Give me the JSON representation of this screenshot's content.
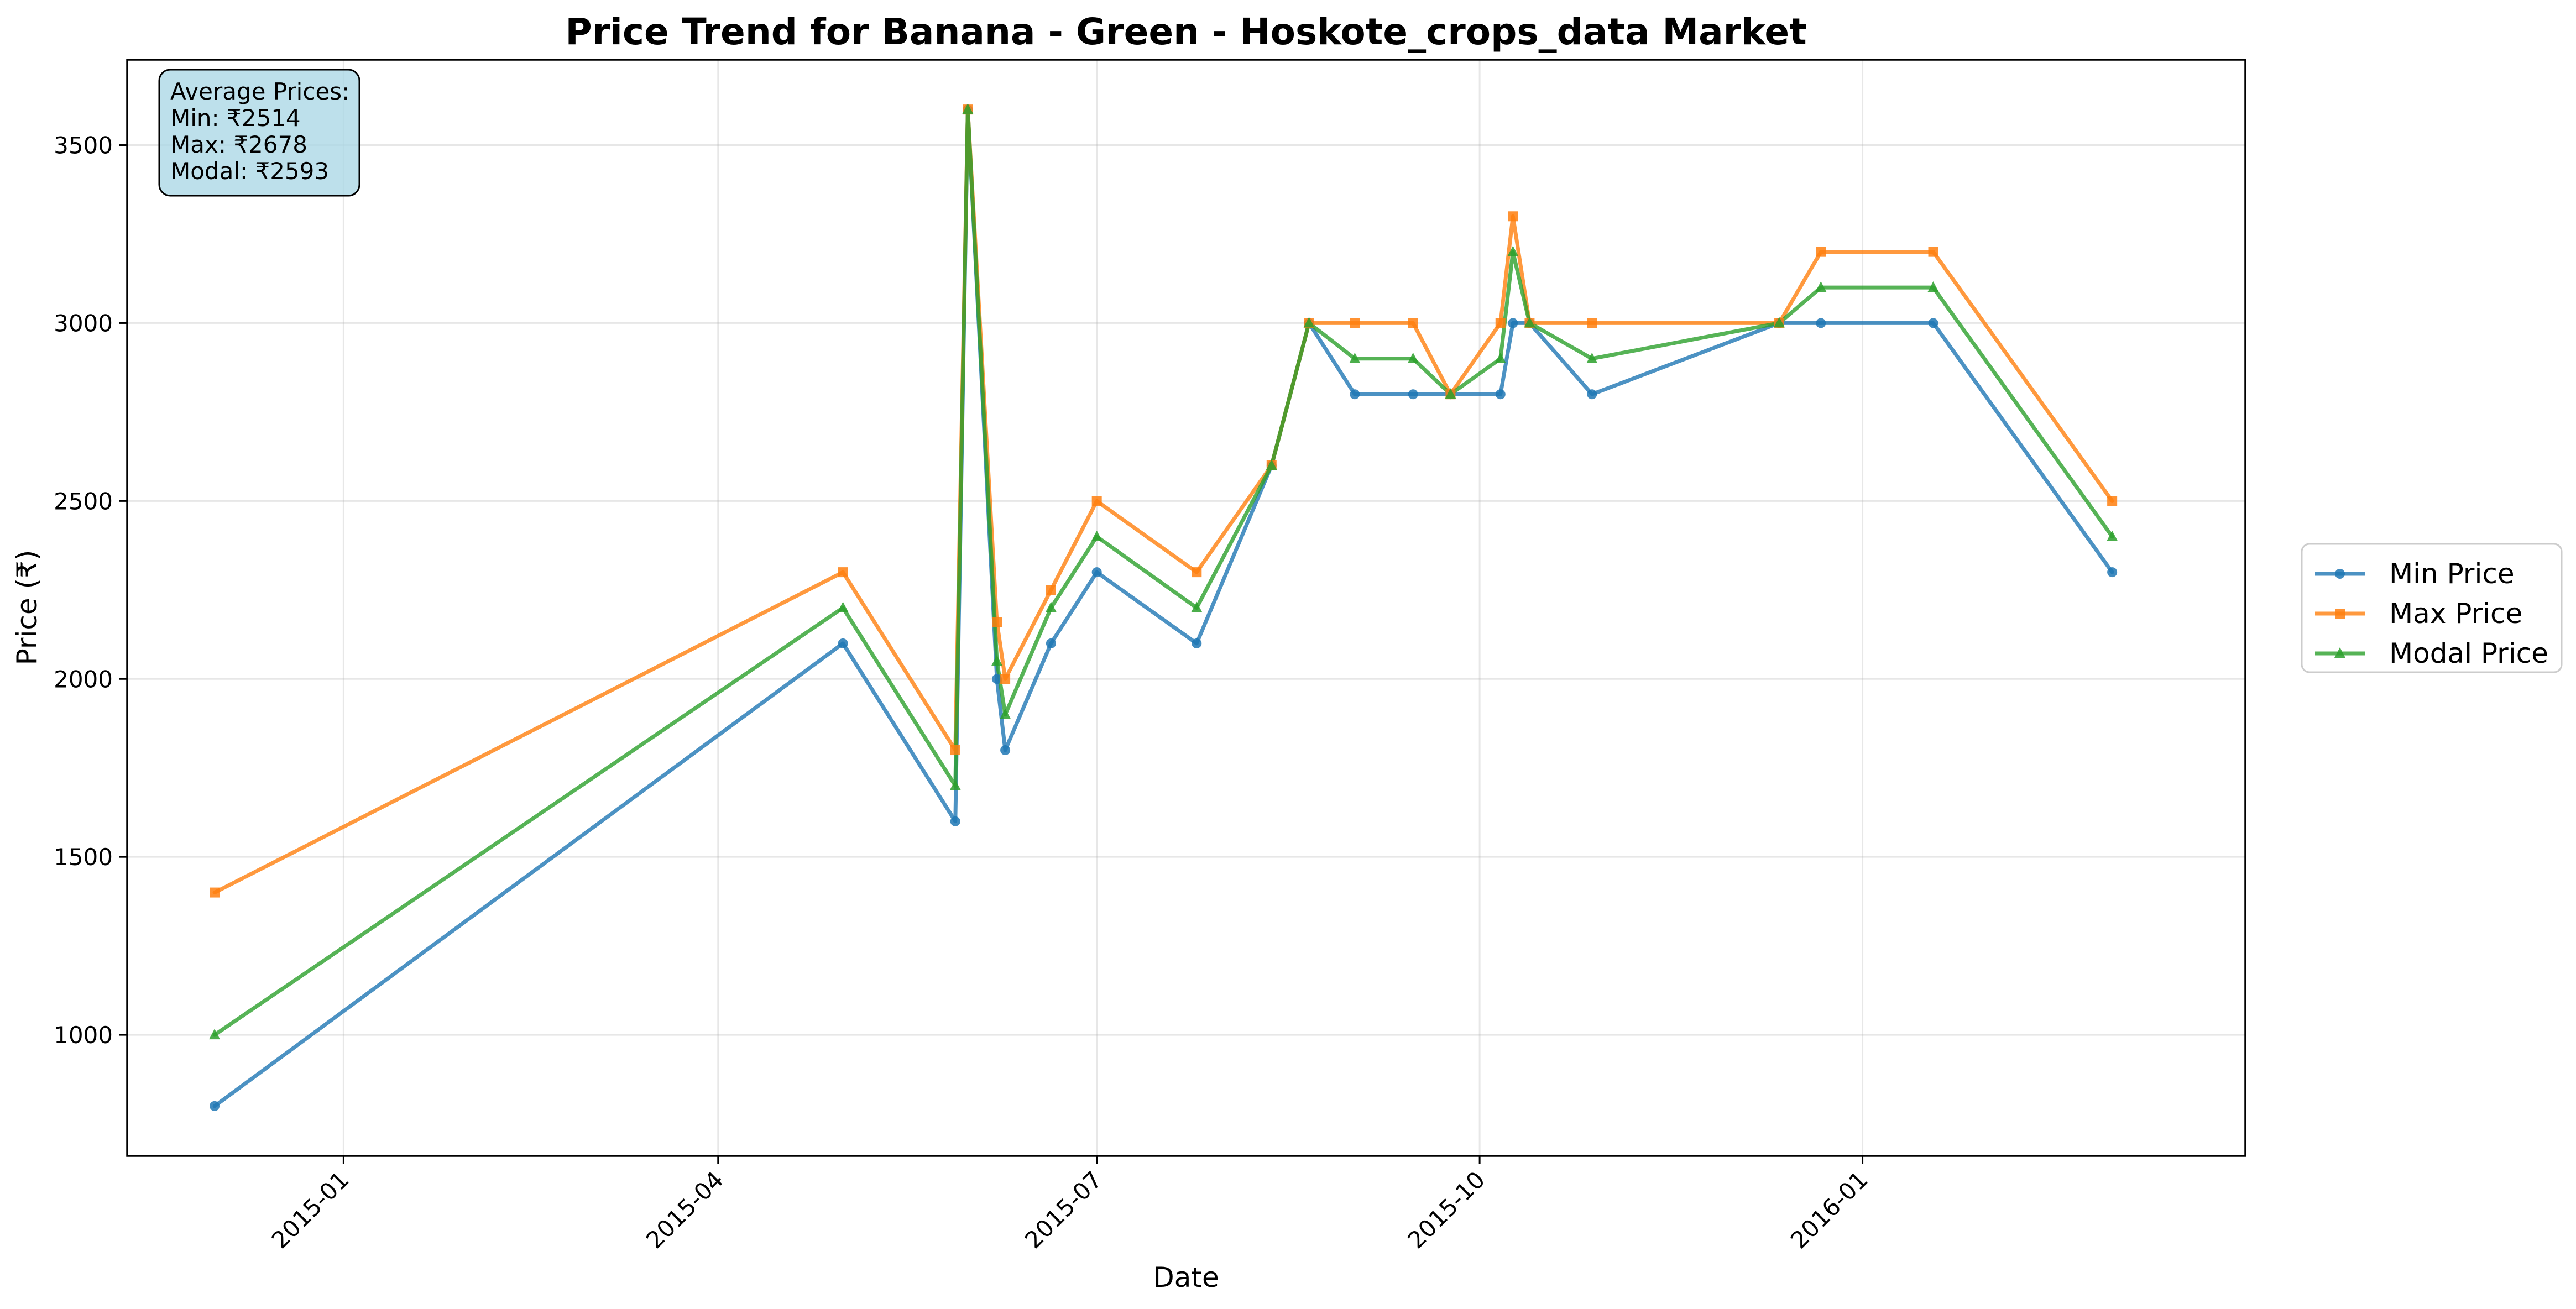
{
  "chart_data": {
    "type": "line",
    "title": "Price Trend for Banana - Green - Hoskote_crops_data Market",
    "xlabel": "Date",
    "ylabel": "Price (₹)",
    "xlim": [
      "2014-11-10",
      "2016-04-02"
    ],
    "ylim": [
      660,
      3740
    ],
    "grid": true,
    "legend_placement": "right-outside",
    "x_ticks": [
      "2015-01-01",
      "2015-04-01",
      "2015-07-01",
      "2015-10-01",
      "2016-01-01"
    ],
    "x_tick_labels": [
      "2015-01",
      "2015-04",
      "2015-07",
      "2015-10",
      "2016-01"
    ],
    "y_ticks": [
      1000,
      1500,
      2000,
      2500,
      3000,
      3500
    ],
    "y_tick_labels": [
      "1000",
      "1500",
      "2000",
      "2500",
      "3000",
      "3500"
    ],
    "x": [
      "2014-12-01",
      "2015-05-01",
      "2015-05-28",
      "2015-05-31",
      "2015-06-07",
      "2015-06-09",
      "2015-06-20",
      "2015-07-01",
      "2015-07-25",
      "2015-08-12",
      "2015-08-21",
      "2015-09-01",
      "2015-09-15",
      "2015-09-24",
      "2015-10-06",
      "2015-10-09",
      "2015-10-13",
      "2015-10-28",
      "2015-12-12",
      "2015-12-22",
      "2016-01-18",
      "2016-03-01"
    ],
    "series": [
      {
        "name": "Min Price",
        "color": "#1f77b4",
        "marker": "circle",
        "values": [
          800,
          2100,
          1600,
          3600,
          2000,
          1800,
          2100,
          2300,
          2100,
          2600,
          3000,
          2800,
          2800,
          2800,
          2800,
          3000,
          3000,
          2800,
          3000,
          3000,
          3000,
          2300
        ]
      },
      {
        "name": "Max Price",
        "color": "#ff7f0e",
        "marker": "square",
        "values": [
          1400,
          2300,
          1800,
          3600,
          2160,
          2000,
          2250,
          2500,
          2300,
          2600,
          3000,
          3000,
          3000,
          2800,
          3000,
          3300,
          3000,
          3000,
          3000,
          3200,
          3200,
          2500
        ]
      },
      {
        "name": "Modal Price",
        "color": "#2ca02c",
        "marker": "triangle",
        "values": [
          1000,
          2200,
          1700,
          3600,
          2050,
          1900,
          2200,
          2400,
          2200,
          2600,
          3000,
          2900,
          2900,
          2800,
          2900,
          3200,
          3000,
          2900,
          3000,
          3100,
          3100,
          2400
        ]
      }
    ],
    "annotation": {
      "background": "#add8e6",
      "lines": [
        "Average Prices:",
        "Min: ₹2514",
        "Max: ₹2678",
        "Modal: ₹2593"
      ]
    }
  }
}
